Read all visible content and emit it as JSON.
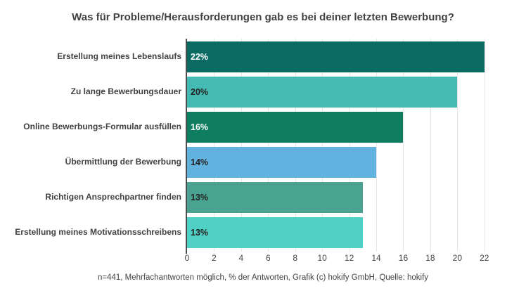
{
  "title": "Was für Probleme/Herausforderungen gab es bei deiner letzten Bewerbung?",
  "footer": "n=441, Mehrfachantworten möglich, % der Antworten, Grafik (c) hokify GmbH, Quelle: hokify",
  "chart_data": {
    "type": "bar",
    "orientation": "horizontal",
    "title": "Was für Probleme/Herausforderungen gab es bei deiner letzten Bewerbung?",
    "xlabel": "",
    "ylabel": "",
    "categories": [
      "Erstellung meines Lebenslaufs",
      "Zu lange Bewerbungsdauer",
      "Online Bewerbungs-Formular ausfüllen",
      "Übermittlung der Bewerbung",
      "Richtigen Ansprechpartner finden",
      "Erstellung meines Motivationsschreibens"
    ],
    "values": [
      22,
      20,
      16,
      14,
      13,
      13
    ],
    "value_labels": [
      "22%",
      "20%",
      "16%",
      "14%",
      "13%",
      "13%"
    ],
    "bar_colors": [
      "#0B6B63",
      "#45BAB2",
      "#0E7D60",
      "#61B2DE",
      "#4AA391",
      "#50D0C4"
    ],
    "value_label_colors": [
      "#ffffff",
      "#212121",
      "#ffffff",
      "#212121",
      "#212121",
      "#212121"
    ],
    "xticks": [
      0,
      2,
      4,
      6,
      8,
      10,
      12,
      14,
      16,
      18,
      20,
      22
    ],
    "xlim": [
      0,
      23
    ],
    "grid": true,
    "gridline_color": "#e6e6e6",
    "axis_line_color": "#4d4d4d",
    "legend_position": "none",
    "background_color": "#ffffff",
    "note": "n=441, Mehrfachantworten möglich, % der Antworten, Grafik (c) hokify GmbH, Quelle: hokify"
  }
}
